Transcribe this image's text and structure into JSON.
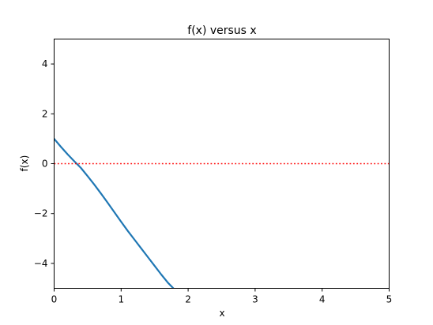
{
  "chart_data": {
    "type": "line",
    "title": "f(x) versus x",
    "xlabel": "x",
    "ylabel": "f(x)",
    "xlim": [
      0,
      5
    ],
    "ylim": [
      -5,
      5
    ],
    "xticks": [
      0,
      1,
      2,
      3,
      4,
      5
    ],
    "yticks": [
      -4,
      -2,
      0,
      2,
      4
    ],
    "ytick_labels": [
      "−4",
      "−2",
      "0",
      "2",
      "4"
    ],
    "grid": false,
    "series": [
      {
        "color": "#1f77b4",
        "style": "solid",
        "x": [
          0.0,
          0.1,
          0.2,
          0.3,
          0.4,
          0.5,
          0.6,
          0.7,
          0.8,
          0.9,
          1.0,
          1.1,
          1.2,
          1.3,
          1.4,
          1.5,
          1.6,
          1.7,
          1.78
        ],
        "y": [
          1.0,
          0.68,
          0.38,
          0.1,
          -0.17,
          -0.5,
          -0.84,
          -1.2,
          -1.57,
          -1.95,
          -2.33,
          -2.7,
          -3.05,
          -3.4,
          -3.75,
          -4.1,
          -4.45,
          -4.78,
          -5.0
        ]
      },
      {
        "color": "#ff0000",
        "style": "dotted",
        "x": [
          0,
          5
        ],
        "y": [
          0,
          0
        ]
      }
    ]
  }
}
